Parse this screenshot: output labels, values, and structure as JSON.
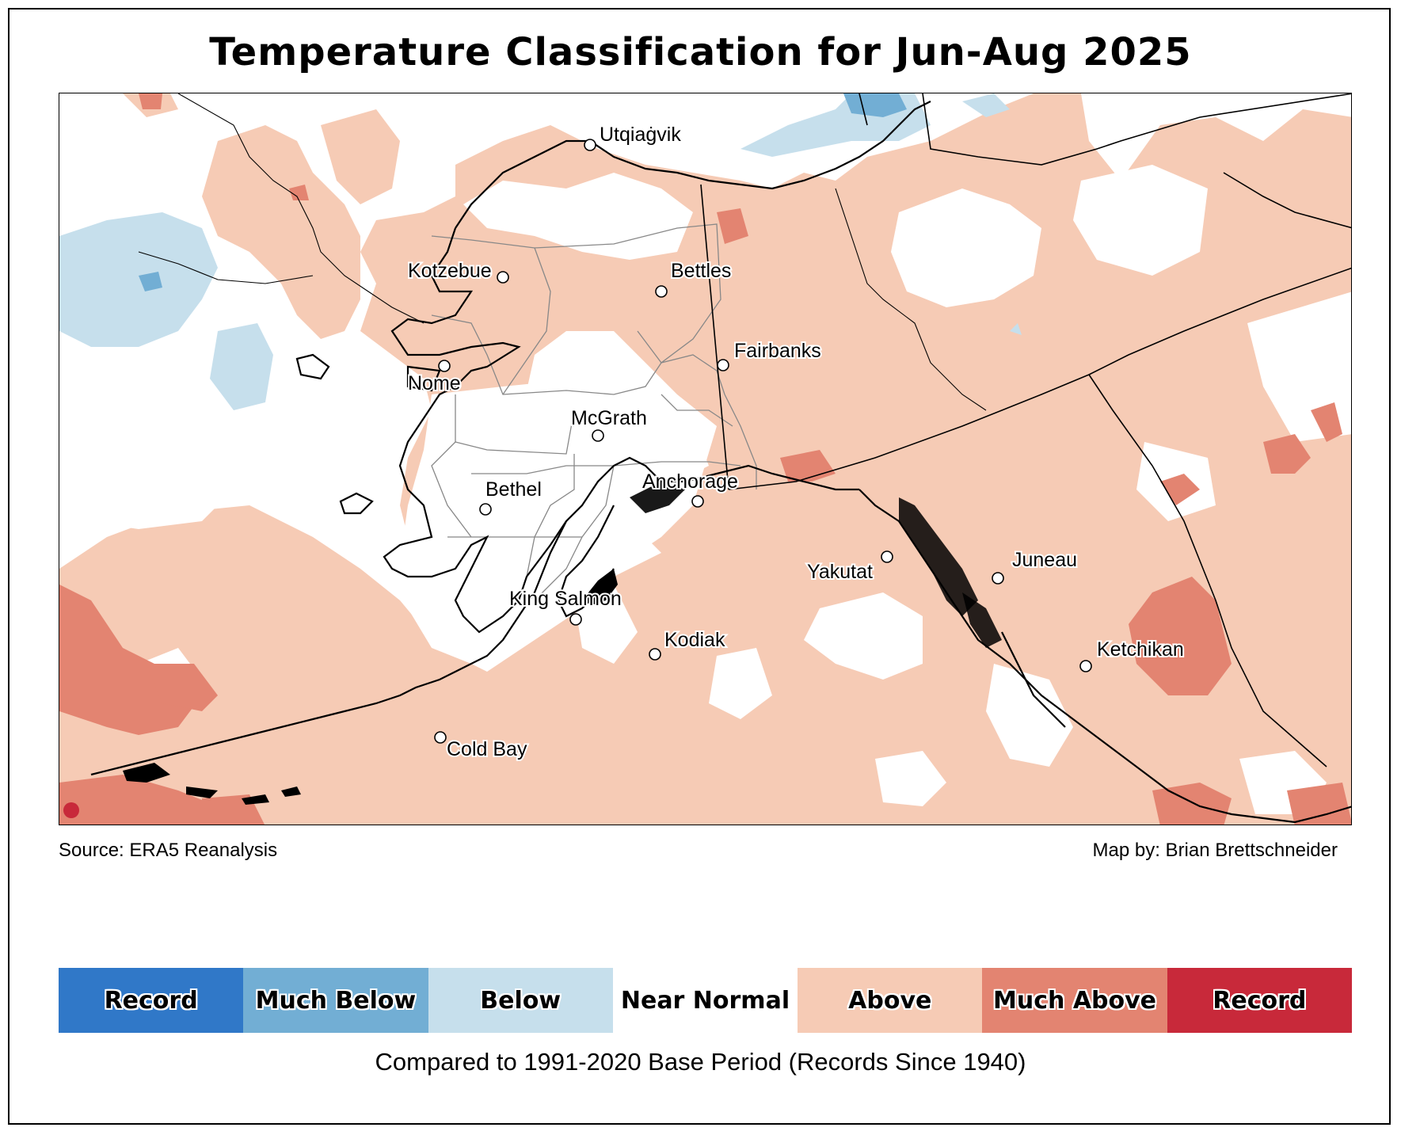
{
  "title": "Temperature Classification for Jun-Aug 2025",
  "source": "Source: ERA5 Reanalysis",
  "credit": "Map by: Brian Brettschneider",
  "base_period_note": "Compared to 1991-2020 Base Period   (Records Since 1940)",
  "colors": {
    "record_low": "#3078c8",
    "much_below": "#72aed4",
    "below": "#c6dfec",
    "near_normal": "#ffffff",
    "above": "#f6cbb5",
    "much_above": "#e38471",
    "record_high": "#c8293a"
  },
  "legend": [
    {
      "label": "Record",
      "color": "#3078c8"
    },
    {
      "label": "Much Below",
      "color": "#72aed4"
    },
    {
      "label": "Below",
      "color": "#c6dfec"
    },
    {
      "label": "Near Normal",
      "color": "#ffffff"
    },
    {
      "label": "Above",
      "color": "#f6cbb5"
    },
    {
      "label": "Much Above",
      "color": "#e38471"
    },
    {
      "label": "Record",
      "color": "#c8293a"
    }
  ],
  "cities": [
    "Utqiaġvik",
    "Kotzebue",
    "Bettles",
    "Fairbanks",
    "Nome",
    "McGrath",
    "Bethel",
    "Anchorage",
    "Yakutat",
    "Juneau",
    "King Salmon",
    "Kodiak",
    "Ketchikan",
    "Cold Bay"
  ]
}
